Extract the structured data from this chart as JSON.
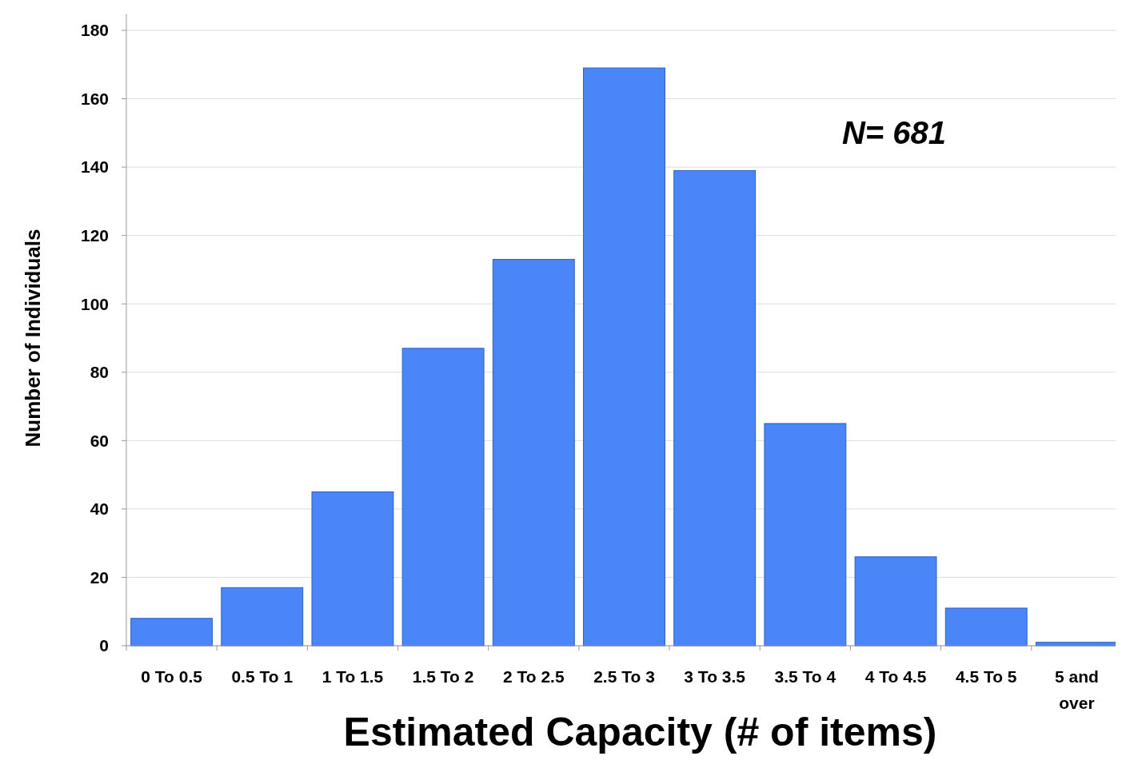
{
  "chart_data": {
    "type": "bar",
    "xlabel": "Estimated Capacity (# of items)",
    "ylabel": "Number of Individuals",
    "categories": [
      "0 To 0.5",
      "0.5 To 1",
      "1 To 1.5",
      "1.5 To 2",
      "2 To 2.5",
      "2.5 To 3",
      "3 To 3.5",
      "3.5 To 4",
      "4 To 4.5",
      "4.5 To 5",
      "5 and over"
    ],
    "values": [
      8,
      17,
      45,
      87,
      113,
      169,
      139,
      65,
      26,
      11,
      1
    ],
    "color": "#4a86f7",
    "ylim": [
      0,
      180
    ],
    "yticks": [
      0,
      20,
      40,
      60,
      80,
      100,
      120,
      140,
      160,
      180
    ],
    "grid": "y",
    "annotations": [
      "N= 681"
    ]
  }
}
